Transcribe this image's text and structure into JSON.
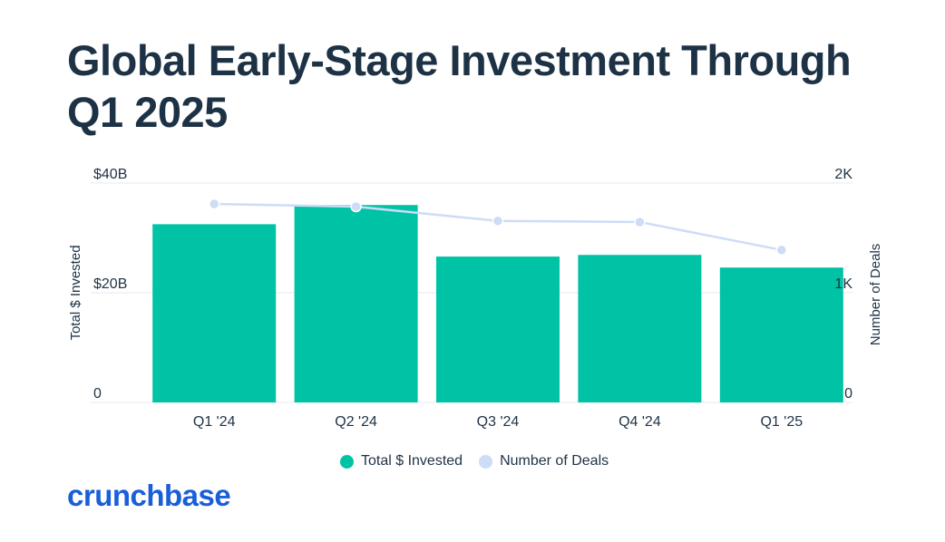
{
  "title": "Global Early-Stage Investment Through Q1 2025",
  "brand": "crunchbase",
  "colors": {
    "bar": "#00c3a5",
    "line": "#cddcf7",
    "text": "#1e3246",
    "brand": "#1a5ed8",
    "grid": "#e6eaef"
  },
  "chart_data": {
    "type": "bar",
    "categories": [
      "Q1 '24",
      "Q2 '24",
      "Q3 '24",
      "Q4 '24",
      "Q1 '25"
    ],
    "series": [
      {
        "name": "Total $ Invested",
        "type": "bar",
        "axis": "left",
        "values": [
          32.5,
          36.0,
          26.6,
          26.9,
          24.6
        ]
      },
      {
        "name": "Number of Deals",
        "type": "line",
        "axis": "right",
        "values": [
          1810,
          1785,
          1655,
          1645,
          1390
        ]
      }
    ],
    "ylabel": "Total $ Invested",
    "y2label": "Number of Deals",
    "ylim": [
      0,
      40
    ],
    "y2lim": [
      0,
      2000
    ],
    "yticks": [
      "0",
      "$20B",
      "$40B"
    ],
    "y2ticks": [
      "0",
      "1K",
      "2K"
    ],
    "grid": true,
    "legend_position": "bottom"
  }
}
